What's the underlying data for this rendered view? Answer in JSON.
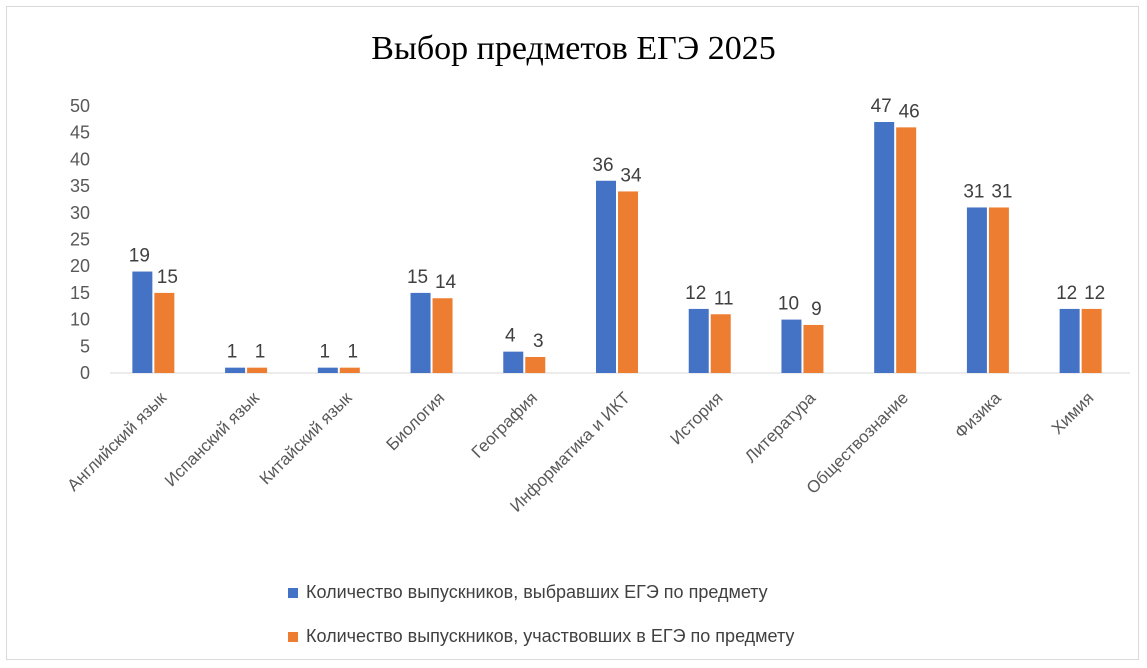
{
  "chart_data": {
    "type": "bar",
    "title": "Выбор предметов ЕГЭ 2025",
    "xlabel": "",
    "ylabel": "",
    "ylim": [
      0,
      50
    ],
    "yticks": [
      0,
      5,
      10,
      15,
      20,
      25,
      30,
      35,
      40,
      45,
      50
    ],
    "grid": false,
    "legend_position": "bottom",
    "categories": [
      "Английский язык",
      "Испанский язык",
      "Китайский язык",
      "Биология",
      "География",
      "Информатика и ИКТ",
      "История",
      "Литература",
      "Обществознание",
      "Физика",
      "Химия"
    ],
    "series": [
      {
        "name": "Количество выпускников, выбравших ЕГЭ по предмету",
        "color": "#4472c4",
        "values": [
          19,
          1,
          1,
          15,
          4,
          36,
          12,
          10,
          47,
          31,
          12
        ]
      },
      {
        "name": "Количество выпускников, участвовших в ЕГЭ по предмету",
        "color": "#ed7d31",
        "values": [
          15,
          1,
          1,
          14,
          3,
          34,
          11,
          9,
          46,
          31,
          12
        ]
      }
    ]
  }
}
